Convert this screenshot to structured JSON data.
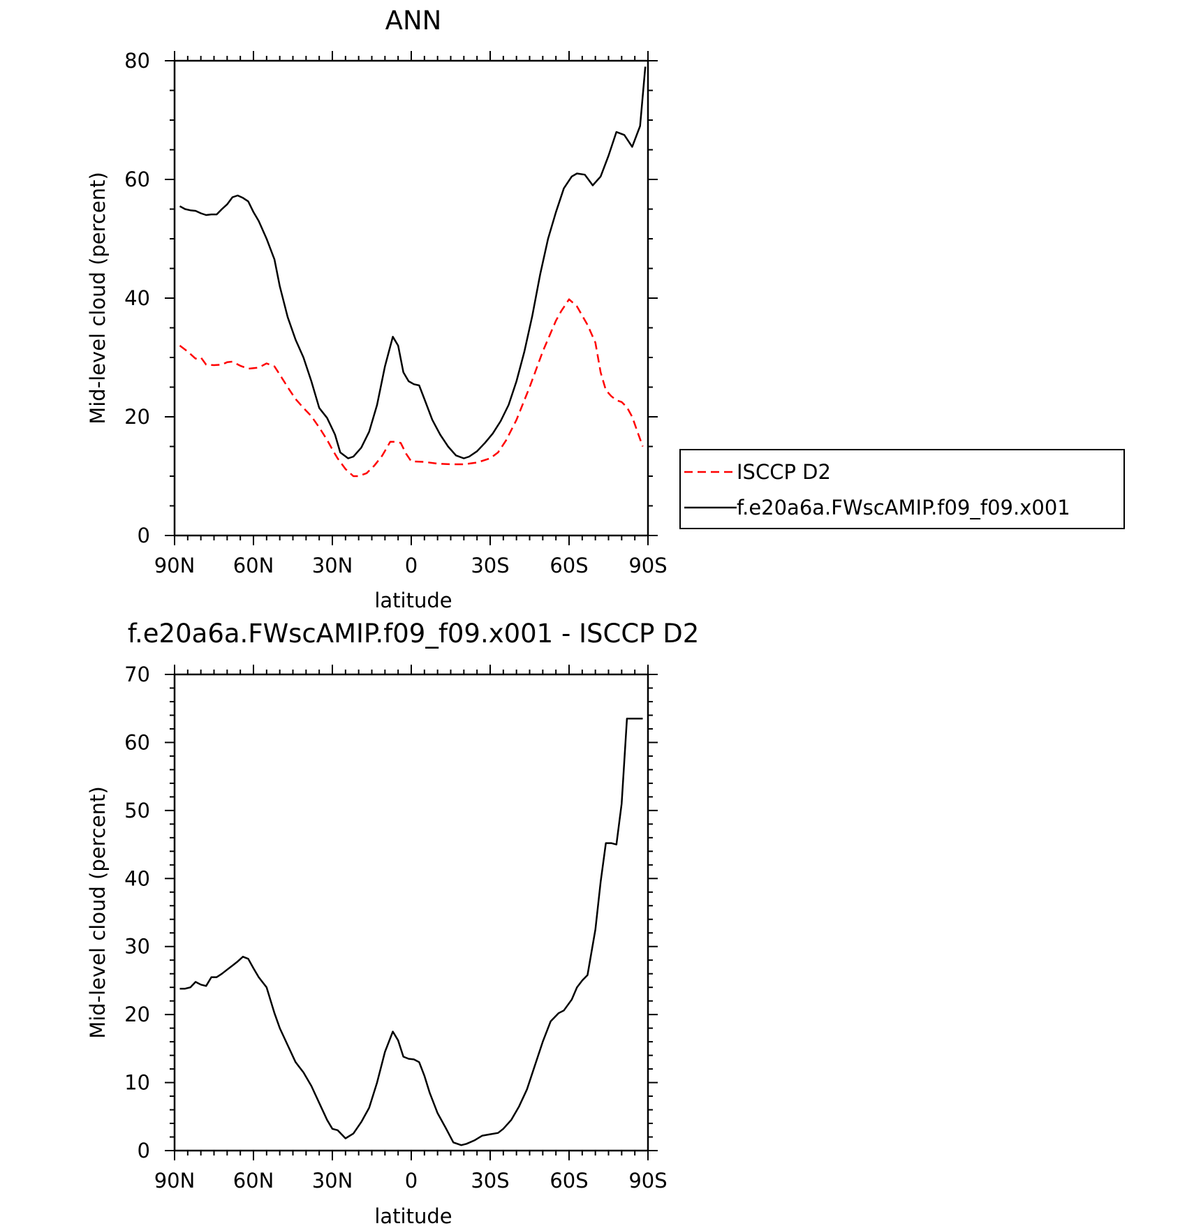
{
  "chart_data": [
    {
      "type": "line",
      "title": "ANN",
      "xlabel": "latitude",
      "ylabel": "Mid-level cloud (percent)",
      "xlim": [
        -90,
        90
      ],
      "ylim": [
        0,
        80
      ],
      "x_ticks": [
        {
          "value": -90,
          "label": "90N"
        },
        {
          "value": -60,
          "label": "60N"
        },
        {
          "value": -30,
          "label": "30N"
        },
        {
          "value": 0,
          "label": "0"
        },
        {
          "value": 30,
          "label": "30S"
        },
        {
          "value": 60,
          "label": "60S"
        },
        {
          "value": 90,
          "label": "90S"
        }
      ],
      "y_ticks": [
        0,
        20,
        40,
        60,
        80
      ],
      "y_minor_step": 5,
      "legend": {
        "placement": "right-middle",
        "entries": [
          {
            "name": "ISCCP D2",
            "color": "#ff0000",
            "dash": "dashed"
          },
          {
            "name": "f.e20a6a.FWscAMIP.f09_f09.x001",
            "color": "#000000",
            "dash": "solid"
          }
        ]
      },
      "series": [
        {
          "name": "ISCCP D2",
          "color": "#ff0000",
          "dash": "dashed",
          "x": [
            -88,
            -85,
            -82,
            -80,
            -78,
            -75,
            -72,
            -70,
            -68,
            -65,
            -62,
            -58,
            -55,
            -52,
            -50,
            -47,
            -44,
            -41,
            -38,
            -35,
            -32,
            -30,
            -28,
            -25,
            -22,
            -20,
            -17,
            -14,
            -11,
            -8,
            -6,
            -4,
            -2,
            0,
            5,
            10,
            15,
            20,
            25,
            30,
            33,
            36,
            40,
            45,
            50,
            55,
            57,
            60,
            63,
            67,
            70,
            72,
            74,
            76,
            78,
            80,
            82,
            84,
            86,
            88
          ],
          "y": [
            32,
            31,
            29.8,
            30,
            28.8,
            28.7,
            28.8,
            29.2,
            29.3,
            28.6,
            28.1,
            28.3,
            29,
            28.5,
            27.1,
            25,
            23,
            21.5,
            20.1,
            18.2,
            16.1,
            14.5,
            13,
            11.2,
            10,
            10,
            10.5,
            11.8,
            13.5,
            15.8,
            15.8,
            15.6,
            13.8,
            12.5,
            12.4,
            12.1,
            12,
            12,
            12.3,
            13,
            14,
            16,
            19.5,
            25,
            31,
            36.2,
            37.8,
            39.8,
            38.6,
            35.5,
            32.5,
            27.5,
            24.5,
            23.5,
            22.8,
            22.5,
            21.6,
            20,
            17.5,
            15
          ]
        },
        {
          "name": "f.e20a6a.FWscAMIP.f09_f09.x001",
          "color": "#000000",
          "dash": "solid",
          "x": [
            -88,
            -86,
            -84,
            -82,
            -80,
            -78,
            -76,
            -74,
            -72,
            -70,
            -68,
            -66,
            -64,
            -62,
            -60,
            -58,
            -55,
            -52,
            -50,
            -47,
            -44,
            -41,
            -38,
            -35,
            -32,
            -29,
            -27,
            -24,
            -22,
            -19,
            -16,
            -13,
            -10,
            -7,
            -5,
            -3,
            -1,
            1,
            3,
            5,
            8,
            11,
            14,
            17,
            20,
            22,
            25,
            28,
            31,
            34,
            37,
            40,
            43,
            46,
            49,
            52,
            55,
            58,
            61,
            63,
            66,
            69,
            72,
            75,
            78,
            81,
            84,
            87,
            89
          ],
          "y": [
            55.5,
            55,
            54.8,
            54.7,
            54.3,
            54,
            54.1,
            54.1,
            55,
            55.8,
            57,
            57.3,
            56.9,
            56.3,
            54.5,
            53,
            50,
            46.5,
            42,
            36.8,
            33,
            30,
            26,
            21.5,
            19.8,
            17,
            14,
            13,
            13.3,
            14.8,
            17.5,
            22,
            28.5,
            33.5,
            32,
            27.5,
            26,
            25.5,
            25.3,
            23,
            19.5,
            17,
            15,
            13.5,
            13,
            13.3,
            14.2,
            15.6,
            17.2,
            19.3,
            22,
            26,
            31,
            37,
            44,
            50,
            54.5,
            58.5,
            60.5,
            61,
            60.8,
            59,
            60.5,
            64,
            68,
            67.5,
            65.5,
            69,
            79
          ]
        }
      ]
    },
    {
      "type": "line",
      "title": "f.e20a6a.FWscAMIP.f09_f09.x001 - ISCCP D2",
      "xlabel": "latitude",
      "ylabel": "Mid-level cloud (percent)",
      "xlim": [
        -90,
        90
      ],
      "ylim": [
        0,
        70
      ],
      "x_ticks": [
        {
          "value": -90,
          "label": "90N"
        },
        {
          "value": -60,
          "label": "60N"
        },
        {
          "value": -30,
          "label": "30N"
        },
        {
          "value": 0,
          "label": "0"
        },
        {
          "value": 30,
          "label": "30S"
        },
        {
          "value": 60,
          "label": "60S"
        },
        {
          "value": 90,
          "label": "90S"
        }
      ],
      "y_ticks": [
        0,
        10,
        20,
        30,
        40,
        50,
        60,
        70
      ],
      "y_minor_step": 2,
      "series": [
        {
          "color": "#000000",
          "dash": "solid",
          "x": [
            -88,
            -86,
            -84,
            -82,
            -80,
            -78,
            -76,
            -74,
            -72,
            -70,
            -68,
            -66,
            -64,
            -62,
            -60,
            -58,
            -55,
            -52,
            -50,
            -47,
            -44,
            -41,
            -38,
            -35,
            -32,
            -30,
            -28,
            -25,
            -22,
            -19,
            -16,
            -13,
            -10,
            -7,
            -5,
            -3,
            -1,
            1,
            3,
            5,
            7,
            10,
            13,
            16,
            19,
            21,
            24,
            27,
            30,
            33,
            35,
            38,
            41,
            44,
            47,
            50,
            53,
            56,
            58,
            61,
            63,
            65,
            67,
            70,
            72,
            74,
            76,
            78,
            80,
            82,
            84,
            86,
            88
          ],
          "y": [
            23.8,
            23.8,
            24,
            24.8,
            24.4,
            24.2,
            25.5,
            25.5,
            26,
            26.6,
            27.2,
            27.8,
            28.5,
            28.2,
            26.8,
            25.5,
            24,
            20.2,
            18,
            15.5,
            13,
            11.5,
            9.5,
            7,
            4.5,
            3.2,
            3,
            1.8,
            2.5,
            4.2,
            6.3,
            10,
            14.5,
            17.5,
            16.2,
            13.8,
            13.5,
            13.4,
            13,
            11,
            8.5,
            5.5,
            3.4,
            1.2,
            0.8,
            1,
            1.5,
            2.2,
            2.4,
            2.6,
            3.2,
            4.5,
            6.5,
            9,
            12.5,
            16,
            19,
            20.2,
            20.6,
            22.2,
            24,
            25,
            25.8,
            32.5,
            39.5,
            45.2,
            45.2,
            45,
            51,
            63.5,
            63.5,
            63.5,
            63.5
          ]
        }
      ]
    }
  ]
}
